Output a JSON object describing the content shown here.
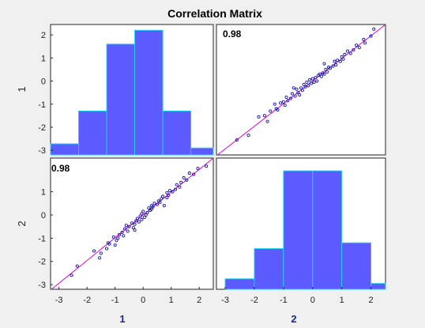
{
  "chart_data": {
    "type": "scatter-matrix",
    "title": "Correlation Matrix",
    "variables": [
      "1",
      "2"
    ],
    "colors": {
      "bar_fill": "#5b5bff",
      "bar_edge": "#22d3ee",
      "point": "#1a1aa8",
      "fit_line": "#e000e0"
    },
    "x_ticks": [
      "-3",
      "-2",
      "-1",
      "0",
      "1",
      "2"
    ],
    "y_ticks_row1": [
      "2",
      "1",
      "0",
      "-1",
      "-2",
      "-3"
    ],
    "y_ticks_row2": [
      "1",
      "0",
      "-1",
      "-2",
      "-3"
    ],
    "correlations": {
      "1_2": "0.98",
      "2_1": "0.98"
    },
    "hist_1": {
      "bin_edges": [
        -3.3,
        -2.3,
        -1.3,
        -0.3,
        0.7,
        1.7,
        2.7
      ],
      "ylim": [
        -3.2,
        2.45
      ],
      "values": [
        -2.72,
        -1.3,
        1.6,
        2.2,
        -1.3,
        -2.9
      ]
    },
    "hist_2": {
      "bin_edges": [
        -3,
        -2,
        -1,
        0,
        1,
        2,
        3
      ],
      "ylim": [
        -3.2,
        2.45
      ],
      "values": [
        -2.75,
        -1.45,
        1.9,
        1.9,
        -1.2,
        -2.95
      ]
    },
    "scatter_xlim": [
      -3.3,
      2.5
    ],
    "scatter_ylim": [
      -3.2,
      2.45
    ],
    "fit": {
      "slope": 0.98,
      "intercept": 0.0
    },
    "points": [
      [
        -2.6,
        -2.55
      ],
      [
        -2.2,
        -2.35
      ],
      [
        -1.85,
        -1.55
      ],
      [
        -1.65,
        -1.5
      ],
      [
        -1.45,
        -1.3
      ],
      [
        -1.3,
        -1.0
      ],
      [
        -1.25,
        -1.2
      ],
      [
        -1.2,
        -1.25
      ],
      [
        -1.1,
        -0.95
      ],
      [
        -1.0,
        -0.9
      ],
      [
        -0.95,
        -1.05
      ],
      [
        -0.9,
        -0.7
      ],
      [
        -0.85,
        -0.85
      ],
      [
        -0.75,
        -0.75
      ],
      [
        -0.7,
        -0.55
      ],
      [
        -0.6,
        -0.65
      ],
      [
        -0.55,
        -0.35
      ],
      [
        -0.5,
        -0.5
      ],
      [
        -0.45,
        -0.6
      ],
      [
        -0.4,
        -0.3
      ],
      [
        -0.35,
        -0.4
      ],
      [
        -0.3,
        -0.15
      ],
      [
        -0.25,
        -0.25
      ],
      [
        -0.2,
        -0.05
      ],
      [
        -0.15,
        -0.2
      ],
      [
        -0.1,
        0.05
      ],
      [
        -0.05,
        -0.1
      ],
      [
        0.0,
        0.1
      ],
      [
        0.05,
        -0.05
      ],
      [
        0.1,
        0.15
      ],
      [
        0.15,
        0.0
      ],
      [
        0.2,
        0.25
      ],
      [
        0.25,
        0.3
      ],
      [
        0.3,
        0.2
      ],
      [
        0.35,
        0.35
      ],
      [
        0.4,
        0.3
      ],
      [
        0.45,
        0.5
      ],
      [
        0.5,
        0.4
      ],
      [
        0.55,
        0.6
      ],
      [
        0.6,
        0.55
      ],
      [
        0.7,
        0.65
      ],
      [
        0.75,
        0.85
      ],
      [
        0.8,
        0.7
      ],
      [
        0.85,
        0.9
      ],
      [
        0.95,
        0.85
      ],
      [
        1.0,
        1.05
      ],
      [
        1.05,
        0.95
      ],
      [
        1.1,
        1.15
      ],
      [
        1.2,
        1.3
      ],
      [
        1.3,
        1.2
      ],
      [
        1.4,
        1.35
      ],
      [
        1.5,
        1.55
      ],
      [
        1.6,
        1.45
      ],
      [
        1.75,
        1.8
      ],
      [
        1.8,
        1.65
      ],
      [
        2.0,
        1.95
      ],
      [
        2.1,
        2.25
      ],
      [
        -0.65,
        -0.3
      ],
      [
        0.4,
        0.75
      ],
      [
        -1.55,
        -1.75
      ]
    ]
  }
}
